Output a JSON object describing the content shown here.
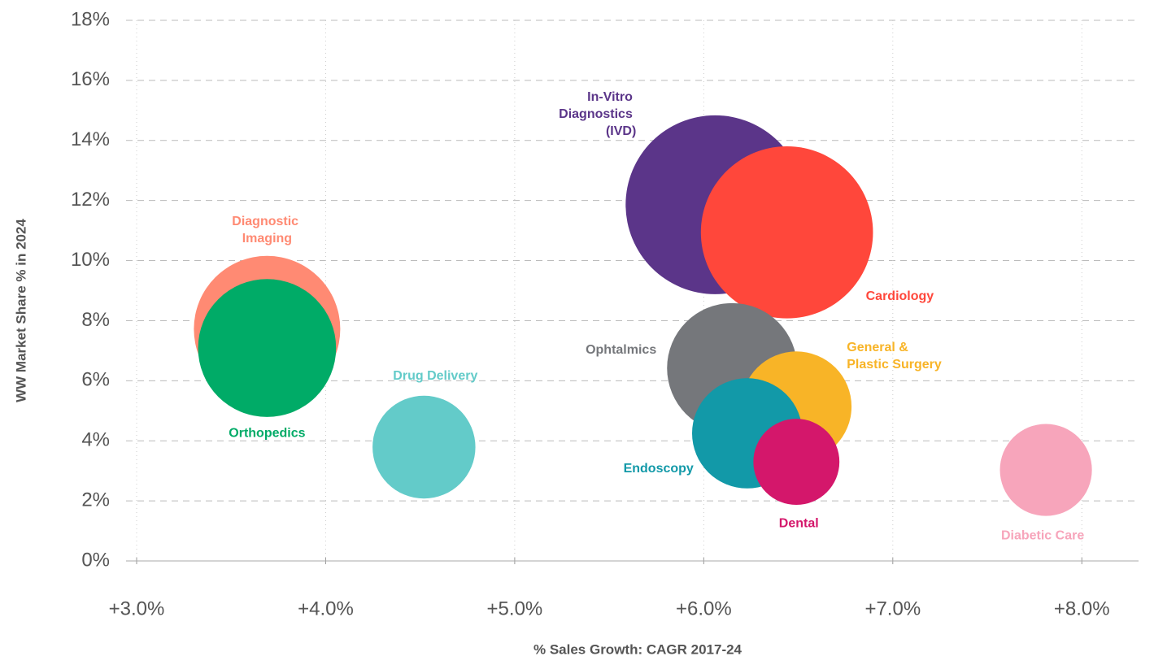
{
  "chart_data": {
    "type": "scatter",
    "xlabel": "% Sales Growth: CAGR 2017-24",
    "ylabel": "WW Market Share % in 2024",
    "xlim": [
      3.0,
      8.3
    ],
    "ylim": [
      0,
      18
    ],
    "xticks": [
      {
        "value": 3.0,
        "label": "+3.0%"
      },
      {
        "value": 4.0,
        "label": "+4.0%"
      },
      {
        "value": 5.0,
        "label": "+5.0%"
      },
      {
        "value": 6.0,
        "label": "+6.0%"
      },
      {
        "value": 7.0,
        "label": "+7.0%"
      },
      {
        "value": 8.0,
        "label": "+8.0%"
      }
    ],
    "yticks": [
      {
        "value": 0,
        "label": "0%"
      },
      {
        "value": 2,
        "label": "2%"
      },
      {
        "value": 4,
        "label": "4%"
      },
      {
        "value": 6,
        "label": "6%"
      },
      {
        "value": 8,
        "label": "8%"
      },
      {
        "value": 10,
        "label": "10%"
      },
      {
        "value": 12,
        "label": "12%"
      },
      {
        "value": 14,
        "label": "14%"
      },
      {
        "value": 16,
        "label": "16%"
      },
      {
        "value": 18,
        "label": "18%"
      }
    ],
    "grid": true,
    "series": [
      {
        "name": "Diagnostic Imaging",
        "color": "#ff8a73",
        "x": [
          3.69
        ],
        "values": [
          7.72
        ],
        "sizes": [
          81
        ]
      },
      {
        "name": "Orthopedics",
        "color": "#00ab67",
        "x": [
          3.69
        ],
        "values": [
          7.09
        ],
        "sizes": [
          72
        ]
      },
      {
        "name": "Drug Delivery",
        "color": "#63cbc9",
        "x": [
          4.52
        ],
        "values": [
          3.79
        ],
        "sizes": [
          40
        ]
      },
      {
        "name": "In-Vitro Diagnostics (IVD)",
        "color": "#5b3589",
        "x": [
          6.06
        ],
        "values": [
          11.86
        ],
        "sizes": [
          121
        ]
      },
      {
        "name": "Cardiology",
        "color": "#ff473b",
        "x": [
          6.44
        ],
        "values": [
          10.94
        ],
        "sizes": [
          112
        ]
      },
      {
        "name": "Ophtalmics",
        "color": "#75777b",
        "x": [
          6.15
        ],
        "values": [
          6.42
        ],
        "sizes": [
          64
        ]
      },
      {
        "name": "General & Plastic Surgery",
        "color": "#f8b427",
        "x": [
          6.49
        ],
        "values": [
          5.14
        ],
        "sizes": [
          46
        ]
      },
      {
        "name": "Endoscopy",
        "color": "#1299a8",
        "x": [
          6.23
        ],
        "values": [
          4.25
        ],
        "sizes": [
          46
        ]
      },
      {
        "name": "Dental",
        "color": "#d4176b",
        "x": [
          6.49
        ],
        "values": [
          3.3
        ],
        "sizes": [
          28
        ]
      },
      {
        "name": "Diabetic Care",
        "color": "#f7a5bb",
        "x": [
          7.81
        ],
        "values": [
          3.03
        ],
        "sizes": [
          32
        ]
      }
    ]
  }
}
